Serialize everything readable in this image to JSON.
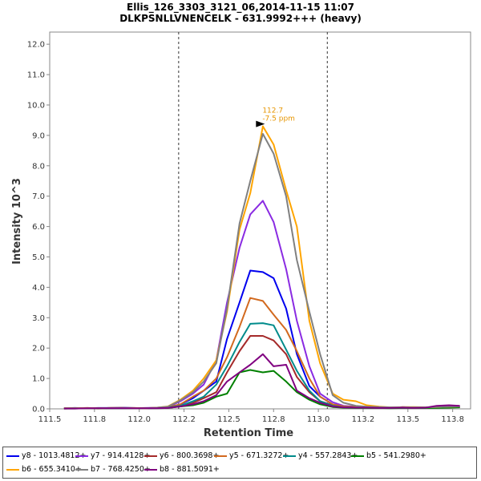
{
  "chart_data": {
    "type": "line",
    "title": "Ellis_126_3303_3121_06,2014-11-15 11:07",
    "subtitle": "DLKPSNLLVNENCELK - 631.9992+++ (heavy)",
    "xlabel": "Retention Time",
    "ylabel": "Intensity 10^3",
    "xlim": [
      111.5,
      113.85
    ],
    "ylim": [
      0,
      12.4
    ],
    "xticks": [
      "111.5",
      "111.8",
      "112.0",
      "112.2",
      "112.5",
      "112.8",
      "113.0",
      "113.2",
      "113.5",
      "113.8"
    ],
    "xtick_values": [
      111.5,
      111.75,
      112.0,
      112.25,
      112.5,
      112.75,
      113.0,
      113.25,
      113.5,
      113.75
    ],
    "yticks": [
      "0.0",
      "1.0",
      "2.0",
      "3.0",
      "4.0",
      "5.0",
      "6.0",
      "7.0",
      "8.0",
      "9.0",
      "10.0",
      "11.0",
      "12.0"
    ],
    "ytick_values": [
      0,
      1,
      2,
      3,
      4,
      5,
      6,
      7,
      8,
      9,
      10,
      11,
      12
    ],
    "boundaries": [
      112.22,
      113.05
    ],
    "annotation": {
      "x": 112.71,
      "y": 9.35,
      "rt": "112.7",
      "ppm": "-7.5 ppm"
    },
    "x": [
      111.58,
      111.64,
      111.71,
      111.77,
      111.84,
      111.9,
      111.97,
      112.03,
      112.1,
      112.16,
      112.23,
      112.3,
      112.36,
      112.43,
      112.49,
      112.56,
      112.62,
      112.69,
      112.75,
      112.82,
      112.88,
      112.95,
      113.01,
      113.08,
      113.14,
      113.21,
      113.27,
      113.34,
      113.4,
      113.47,
      113.53,
      113.6,
      113.66,
      113.73,
      113.79
    ],
    "series": [
      {
        "name": "y8 - 1013.4812+",
        "color": "#0000ee",
        "values": [
          0.02,
          0.03,
          0.02,
          0.03,
          0.03,
          0.04,
          0.03,
          0.02,
          0.03,
          0.05,
          0.15,
          0.35,
          0.6,
          0.9,
          2.3,
          3.5,
          4.55,
          4.5,
          4.3,
          3.3,
          1.8,
          0.75,
          0.4,
          0.15,
          0.08,
          0.06,
          0.05,
          0.05,
          0.04,
          0.05,
          0.05,
          0.04,
          0.06,
          0.07,
          0.08
        ]
      },
      {
        "name": "y7 - 914.4128+",
        "color": "#8a2be2",
        "values": [
          0.02,
          0.02,
          0.03,
          0.02,
          0.03,
          0.03,
          0.02,
          0.03,
          0.04,
          0.06,
          0.25,
          0.5,
          0.8,
          1.6,
          3.5,
          5.3,
          6.4,
          6.85,
          6.15,
          4.6,
          2.9,
          1.4,
          0.5,
          0.22,
          0.1,
          0.07,
          0.05,
          0.05,
          0.04,
          0.04,
          0.05,
          0.05,
          0.05,
          0.06,
          0.07
        ]
      },
      {
        "name": "y6 - 800.3698+",
        "color": "#a52a2a",
        "values": [
          0.01,
          0.02,
          0.02,
          0.02,
          0.02,
          0.03,
          0.02,
          0.02,
          0.03,
          0.04,
          0.1,
          0.2,
          0.35,
          0.55,
          1.2,
          1.9,
          2.4,
          2.4,
          2.25,
          1.8,
          1.05,
          0.55,
          0.25,
          0.12,
          0.06,
          0.05,
          0.04,
          0.04,
          0.03,
          0.06,
          0.05,
          0.03,
          0.04,
          0.05,
          0.06
        ]
      },
      {
        "name": "y5 - 671.3272+",
        "color": "#d2691e",
        "values": [
          0.02,
          0.02,
          0.02,
          0.02,
          0.03,
          0.03,
          0.02,
          0.02,
          0.03,
          0.05,
          0.15,
          0.4,
          0.6,
          1.0,
          1.7,
          2.7,
          3.65,
          3.55,
          3.1,
          2.6,
          1.9,
          1.0,
          0.4,
          0.15,
          0.08,
          0.06,
          0.05,
          0.04,
          0.04,
          0.04,
          0.05,
          0.04,
          0.05,
          0.05,
          0.06
        ]
      },
      {
        "name": "y4 - 557.2843+",
        "color": "#008b8b",
        "values": [
          0.01,
          0.02,
          0.02,
          0.02,
          0.02,
          0.02,
          0.02,
          0.02,
          0.03,
          0.04,
          0.1,
          0.25,
          0.4,
          0.8,
          1.4,
          2.2,
          2.8,
          2.82,
          2.75,
          1.95,
          1.25,
          0.6,
          0.25,
          0.1,
          0.05,
          0.04,
          0.04,
          0.03,
          0.03,
          0.03,
          0.04,
          0.03,
          0.04,
          0.05,
          0.06
        ]
      },
      {
        "name": "b5 - 541.2980+",
        "color": "#008000",
        "values": [
          0.01,
          0.01,
          0.02,
          0.01,
          0.02,
          0.02,
          0.02,
          0.02,
          0.02,
          0.03,
          0.08,
          0.12,
          0.2,
          0.4,
          0.5,
          1.2,
          1.28,
          1.2,
          1.25,
          0.9,
          0.55,
          0.3,
          0.15,
          0.06,
          0.04,
          0.03,
          0.03,
          0.03,
          0.02,
          0.03,
          0.03,
          0.03,
          0.03,
          0.04,
          0.05
        ]
      },
      {
        "name": "b6 - 655.3410+",
        "color": "#ffa500",
        "values": [
          0.02,
          0.02,
          0.03,
          0.02,
          0.03,
          0.03,
          0.03,
          0.02,
          0.04,
          0.08,
          0.3,
          0.6,
          1.0,
          1.6,
          3.2,
          5.9,
          7.1,
          9.3,
          8.7,
          7.2,
          6.0,
          2.9,
          1.5,
          0.5,
          0.3,
          0.25,
          0.12,
          0.07,
          0.05,
          0.05,
          0.06,
          0.05,
          0.06,
          0.07,
          0.08
        ]
      },
      {
        "name": "b7 - 768.4250+",
        "color": "#808080",
        "values": [
          0.02,
          0.02,
          0.02,
          0.02,
          0.03,
          0.03,
          0.02,
          0.02,
          0.04,
          0.07,
          0.28,
          0.55,
          0.9,
          1.5,
          3.3,
          6.1,
          7.5,
          9.05,
          8.4,
          7.0,
          4.9,
          3.2,
          1.8,
          0.45,
          0.2,
          0.1,
          0.07,
          0.06,
          0.05,
          0.05,
          0.05,
          0.05,
          0.06,
          0.07,
          0.08
        ]
      },
      {
        "name": "b8 - 881.5091+",
        "color": "#800080",
        "values": [
          0.01,
          0.01,
          0.02,
          0.02,
          0.02,
          0.02,
          0.02,
          0.02,
          0.02,
          0.03,
          0.08,
          0.15,
          0.25,
          0.45,
          0.9,
          1.2,
          1.45,
          1.8,
          1.4,
          1.45,
          0.6,
          0.35,
          0.2,
          0.08,
          0.05,
          0.04,
          0.04,
          0.03,
          0.03,
          0.04,
          0.03,
          0.04,
          0.1,
          0.12,
          0.1
        ]
      }
    ]
  }
}
